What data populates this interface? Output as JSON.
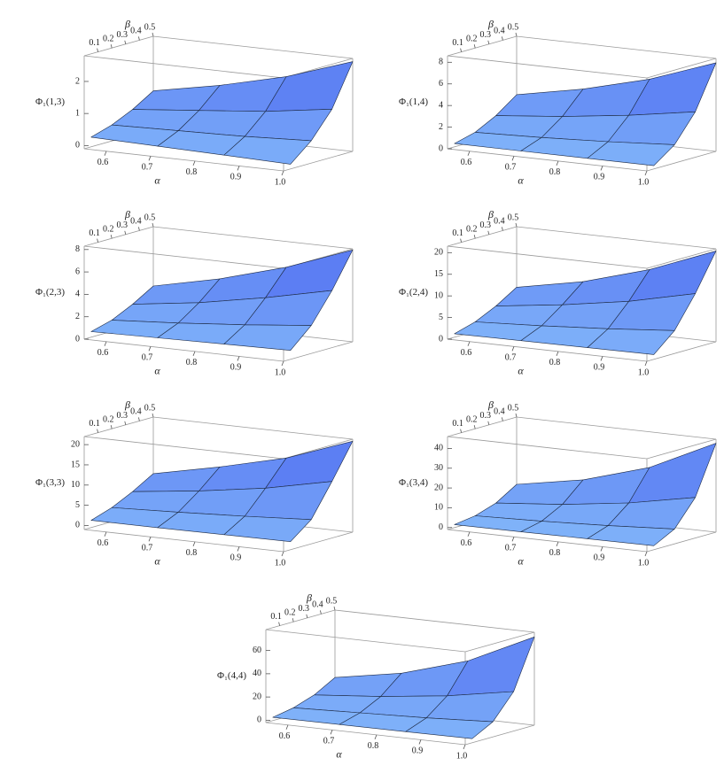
{
  "chart_data": [
    {
      "type": "surface",
      "xlabel": "α",
      "ylabel": "β",
      "zlabel": "Φ₁(1,3)",
      "x": [
        0.55,
        0.7,
        0.85,
        1.0
      ],
      "y": [
        0.05,
        0.2,
        0.35,
        0.5
      ],
      "z": [
        [
          0.2,
          0.15,
          0.1,
          0.05
        ],
        [
          0.4,
          0.45,
          0.5,
          0.6
        ],
        [
          0.7,
          0.9,
          1.1,
          1.4
        ],
        [
          1.1,
          1.5,
          2.0,
          2.7
        ]
      ],
      "xlim": [
        0.55,
        1.0
      ],
      "ylim": [
        0,
        0.5
      ],
      "zlim": [
        -0.1,
        2.8
      ],
      "xticks": [
        0.6,
        0.7,
        0.8,
        0.9,
        {
          "value": 1,
          "label": "1.0"
        }
      ],
      "yticks": [
        0.1,
        0.2,
        0.3,
        0.4,
        0.5
      ],
      "zticks": [
        0,
        1,
        2
      ]
    },
    {
      "type": "surface",
      "xlabel": "α",
      "ylabel": "β",
      "zlabel": "Φ₁(1,4)",
      "x": [
        0.55,
        0.7,
        0.85,
        1.0
      ],
      "y": [
        0.05,
        0.2,
        0.35,
        0.5
      ],
      "z": [
        [
          0.3,
          0.3,
          0.3,
          0.3
        ],
        [
          0.8,
          1.0,
          1.3,
          1.7
        ],
        [
          1.8,
          2.4,
          3.2,
          4.2
        ],
        [
          3.2,
          4.4,
          6.0,
          8.2
        ]
      ],
      "xlim": [
        0.55,
        1.0
      ],
      "ylim": [
        0,
        0.5
      ],
      "zlim": [
        0,
        8.6
      ],
      "xticks": [
        0.6,
        0.7,
        0.8,
        0.9,
        {
          "value": 1,
          "label": "1.0"
        }
      ],
      "yticks": [
        0.1,
        0.2,
        0.3,
        0.4,
        0.5
      ],
      "zticks": [
        0,
        2,
        4,
        6,
        8
      ]
    },
    {
      "type": "surface",
      "xlabel": "α",
      "ylabel": "β",
      "zlabel": "Φ₁(2,3)",
      "x": [
        0.55,
        0.7,
        0.85,
        1.0
      ],
      "y": [
        0.05,
        0.2,
        0.35,
        0.5
      ],
      "z": [
        [
          0.5,
          0.6,
          0.7,
          0.8
        ],
        [
          1.0,
          1.4,
          1.9,
          2.5
        ],
        [
          1.9,
          2.7,
          3.8,
          5.1
        ],
        [
          3.0,
          4.3,
          6.0,
          8.2
        ]
      ],
      "xlim": [
        0.55,
        1.0
      ],
      "ylim": [
        0,
        0.5
      ],
      "zlim": [
        0,
        8.3
      ],
      "xticks": [
        0.6,
        0.7,
        0.8,
        0.9,
        {
          "value": 1,
          "label": "1.0"
        }
      ],
      "yticks": [
        0.1,
        0.2,
        0.3,
        0.4,
        0.5
      ],
      "zticks": [
        0,
        2,
        4,
        6,
        8
      ]
    },
    {
      "type": "surface",
      "xlabel": "α",
      "ylabel": "β",
      "zlabel": "Φ₁(2,4)",
      "x": [
        0.55,
        0.7,
        0.85,
        1.0
      ],
      "y": [
        0.05,
        0.2,
        0.35,
        0.5
      ],
      "z": [
        [
          0.8,
          0.9,
          1.0,
          1.1
        ],
        [
          2.2,
          3.0,
          4.0,
          5.3
        ],
        [
          4.5,
          6.5,
          9.0,
          12.5
        ],
        [
          7.5,
          10.5,
          15.0,
          21.0
        ]
      ],
      "xlim": [
        0.55,
        1.0
      ],
      "ylim": [
        0,
        0.5
      ],
      "zlim": [
        0,
        21.5
      ],
      "xticks": [
        0.6,
        0.7,
        0.8,
        0.9,
        {
          "value": 1,
          "label": "1.0"
        }
      ],
      "yticks": [
        0.1,
        0.2,
        0.3,
        0.4,
        0.5
      ],
      "zticks": [
        0,
        5,
        10,
        15,
        20
      ]
    },
    {
      "type": "surface",
      "xlabel": "α",
      "ylabel": "β",
      "zlabel": "Φ₁(3,3)",
      "x": [
        0.55,
        0.7,
        0.85,
        1.0
      ],
      "y": [
        0.05,
        0.2,
        0.35,
        0.5
      ],
      "z": [
        [
          0.8,
          0.8,
          0.9,
          1.0
        ],
        [
          2.5,
          3.2,
          4.0,
          5.0
        ],
        [
          5.0,
          7.0,
          9.5,
          13.0
        ],
        [
          8.0,
          11.5,
          15.5,
          21.5
        ]
      ],
      "xlim": [
        0.55,
        1.0
      ],
      "ylim": [
        0,
        0.5
      ],
      "zlim": [
        -1,
        22
      ],
      "xticks": [
        0.6,
        0.7,
        0.8,
        0.9,
        {
          "value": 1,
          "label": "1.0"
        }
      ],
      "yticks": [
        0.1,
        0.2,
        0.3,
        0.4,
        0.5
      ],
      "zticks": [
        0,
        5,
        10,
        15,
        20
      ]
    },
    {
      "type": "surface",
      "xlabel": "α",
      "ylabel": "β",
      "zlabel": "Φ₁(3,4)",
      "x": [
        0.55,
        0.7,
        0.85,
        1.0
      ],
      "y": [
        0.05,
        0.2,
        0.35,
        0.5
      ],
      "z": [
        [
          0.5,
          0.6,
          0.8,
          1.0
        ],
        [
          2.0,
          3.0,
          4.5,
          6.5
        ],
        [
          5.5,
          8.5,
          13.0,
          19.5
        ],
        [
          12.0,
          18.0,
          28.0,
          44.0
        ]
      ],
      "xlim": [
        0.55,
        1.0
      ],
      "ylim": [
        0,
        0.5
      ],
      "zlim": [
        -1,
        46
      ],
      "xticks": [
        0.6,
        0.7,
        0.8,
        0.9,
        {
          "value": 1,
          "label": "1.0"
        }
      ],
      "yticks": [
        0.1,
        0.2,
        0.3,
        0.4,
        0.5
      ],
      "zticks": [
        0,
        10,
        20,
        30,
        40
      ]
    },
    {
      "type": "surface",
      "xlabel": "α",
      "ylabel": "β",
      "zlabel": "Φ₁(4,4)",
      "x": [
        0.55,
        0.7,
        0.85,
        1.0
      ],
      "y": [
        0.05,
        0.2,
        0.35,
        0.5
      ],
      "z": [
        [
          0.8,
          1.0,
          1.2,
          1.5
        ],
        [
          4,
          6,
          8,
          11
        ],
        [
          10,
          15,
          22,
          32
        ],
        [
          20,
          30,
          47,
          74
        ]
      ],
      "xlim": [
        0.55,
        1.0
      ],
      "ylim": [
        0,
        0.5
      ],
      "zlim": [
        -2,
        78
      ],
      "xticks": [
        0.6,
        0.7,
        0.8,
        0.9,
        {
          "value": 1,
          "label": "1.0"
        }
      ],
      "yticks": [
        0.1,
        0.2,
        0.3,
        0.4,
        0.5
      ],
      "zticks": [
        0,
        20,
        40,
        60
      ]
    }
  ]
}
